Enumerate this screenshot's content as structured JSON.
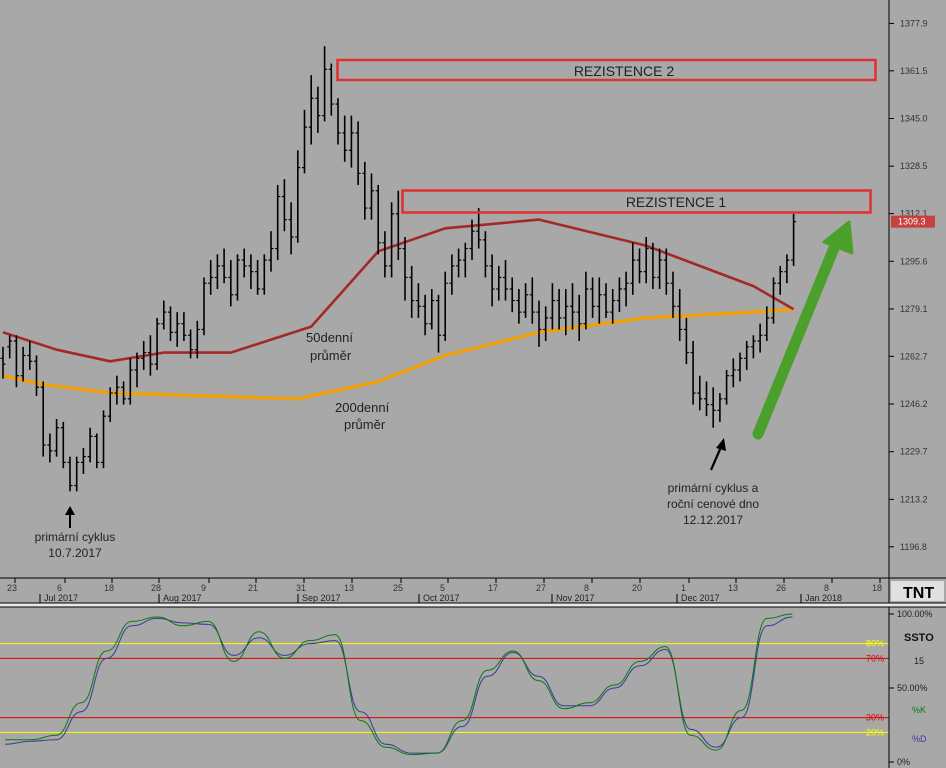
{
  "chart_data": {
    "type": "bar",
    "price_axis": {
      "ticks": [
        "1377.9",
        "1361.5",
        "1345.0",
        "1328.5",
        "1312.1",
        "1295.6",
        "1279.1",
        "1262.7",
        "1246.2",
        "1229.7",
        "1213.2",
        "1196.8"
      ],
      "last_price": "1309.3",
      "ylim": [
        1186,
        1386
      ]
    },
    "date_axis": {
      "day_ticks": [
        "23",
        "6",
        "18",
        "28",
        "9",
        "21",
        "31",
        "13",
        "25",
        "5",
        "17",
        "27",
        "8",
        "20",
        "1",
        "13",
        "26",
        "8",
        "18"
      ],
      "month_ticks": [
        "Jul 2017",
        "Aug 2017",
        "Sep 2017",
        "Oct 2017",
        "Nov 2017",
        "Dec 2017",
        "Jan 2018"
      ]
    },
    "ohlc": [
      [
        1262,
        1266,
        1255,
        1260
      ],
      [
        1266,
        1270,
        1262,
        1268
      ],
      [
        1268,
        1270,
        1252,
        1256
      ],
      [
        1256,
        1266,
        1254,
        1263
      ],
      [
        1263,
        1268,
        1258,
        1261
      ],
      [
        1261,
        1263,
        1249,
        1252
      ],
      [
        1252,
        1254,
        1228,
        1232
      ],
      [
        1232,
        1236,
        1226,
        1230
      ],
      [
        1230,
        1241,
        1228,
        1238
      ],
      [
        1238,
        1240,
        1224,
        1226
      ],
      [
        1226,
        1228,
        1216,
        1218
      ],
      [
        1218,
        1228,
        1216,
        1226
      ],
      [
        1226,
        1231,
        1222,
        1228
      ],
      [
        1228,
        1238,
        1226,
        1235
      ],
      [
        1235,
        1236,
        1224,
        1226
      ],
      [
        1226,
        1244,
        1224,
        1242
      ],
      [
        1242,
        1252,
        1240,
        1250
      ],
      [
        1250,
        1256,
        1246,
        1252
      ],
      [
        1252,
        1254,
        1246,
        1248
      ],
      [
        1248,
        1262,
        1246,
        1258
      ],
      [
        1258,
        1264,
        1252,
        1262
      ],
      [
        1262,
        1268,
        1258,
        1264
      ],
      [
        1264,
        1270,
        1256,
        1260
      ],
      [
        1260,
        1276,
        1258,
        1274
      ],
      [
        1274,
        1282,
        1272,
        1278
      ],
      [
        1278,
        1280,
        1268,
        1271
      ],
      [
        1271,
        1278,
        1266,
        1274
      ],
      [
        1274,
        1278,
        1268,
        1270
      ],
      [
        1270,
        1272,
        1262,
        1265
      ],
      [
        1265,
        1275,
        1262,
        1272
      ],
      [
        1272,
        1290,
        1270,
        1288
      ],
      [
        1288,
        1296,
        1284,
        1290
      ],
      [
        1290,
        1298,
        1286,
        1294
      ],
      [
        1294,
        1300,
        1288,
        1290
      ],
      [
        1290,
        1296,
        1280,
        1284
      ],
      [
        1284,
        1298,
        1282,
        1296
      ],
      [
        1296,
        1300,
        1290,
        1294
      ],
      [
        1294,
        1298,
        1286,
        1292
      ],
      [
        1292,
        1296,
        1284,
        1286
      ],
      [
        1286,
        1298,
        1284,
        1296
      ],
      [
        1296,
        1306,
        1292,
        1300
      ],
      [
        1300,
        1322,
        1296,
        1318
      ],
      [
        1318,
        1324,
        1306,
        1310
      ],
      [
        1310,
        1316,
        1298,
        1304
      ],
      [
        1304,
        1334,
        1302,
        1328
      ],
      [
        1328,
        1348,
        1326,
        1342
      ],
      [
        1342,
        1360,
        1336,
        1352
      ],
      [
        1352,
        1356,
        1340,
        1346
      ],
      [
        1346,
        1370,
        1344,
        1362
      ],
      [
        1362,
        1364,
        1346,
        1350
      ],
      [
        1350,
        1352,
        1336,
        1340
      ],
      [
        1340,
        1346,
        1330,
        1334
      ],
      [
        1334,
        1346,
        1328,
        1340
      ],
      [
        1340,
        1344,
        1322,
        1326
      ],
      [
        1326,
        1330,
        1310,
        1314
      ],
      [
        1314,
        1326,
        1310,
        1320
      ],
      [
        1320,
        1322,
        1298,
        1302
      ],
      [
        1302,
        1306,
        1290,
        1294
      ],
      [
        1294,
        1316,
        1290,
        1312
      ],
      [
        1312,
        1320,
        1296,
        1300
      ],
      [
        1300,
        1304,
        1282,
        1290
      ],
      [
        1290,
        1294,
        1276,
        1282
      ],
      [
        1282,
        1288,
        1276,
        1280
      ],
      [
        1280,
        1284,
        1270,
        1274
      ],
      [
        1274,
        1286,
        1272,
        1282
      ],
      [
        1282,
        1284,
        1264,
        1270
      ],
      [
        1270,
        1292,
        1268,
        1288
      ],
      [
        1288,
        1298,
        1284,
        1294
      ],
      [
        1294,
        1300,
        1290,
        1296
      ],
      [
        1296,
        1302,
        1290,
        1300
      ],
      [
        1300,
        1310,
        1296,
        1306
      ],
      [
        1306,
        1314,
        1300,
        1303
      ],
      [
        1303,
        1306,
        1290,
        1294
      ],
      [
        1294,
        1298,
        1280,
        1286
      ],
      [
        1286,
        1294,
        1282,
        1290
      ],
      [
        1290,
        1296,
        1282,
        1286
      ],
      [
        1286,
        1290,
        1278,
        1282
      ],
      [
        1282,
        1286,
        1274,
        1278
      ],
      [
        1278,
        1288,
        1276,
        1284
      ],
      [
        1284,
        1290,
        1274,
        1278
      ],
      [
        1278,
        1282,
        1266,
        1272
      ],
      [
        1272,
        1280,
        1268,
        1276
      ],
      [
        1276,
        1288,
        1272,
        1282
      ],
      [
        1282,
        1286,
        1272,
        1276
      ],
      [
        1276,
        1286,
        1270,
        1280
      ],
      [
        1280,
        1288,
        1272,
        1278
      ],
      [
        1278,
        1284,
        1268,
        1274
      ],
      [
        1274,
        1292,
        1272,
        1286
      ],
      [
        1286,
        1290,
        1276,
        1280
      ],
      [
        1280,
        1290,
        1274,
        1284
      ],
      [
        1284,
        1288,
        1276,
        1278
      ],
      [
        1278,
        1286,
        1274,
        1282
      ],
      [
        1282,
        1290,
        1278,
        1286
      ],
      [
        1286,
        1292,
        1280,
        1288
      ],
      [
        1288,
        1302,
        1284,
        1296
      ],
      [
        1296,
        1300,
        1288,
        1292
      ],
      [
        1292,
        1304,
        1288,
        1300
      ],
      [
        1300,
        1302,
        1286,
        1290
      ],
      [
        1290,
        1300,
        1286,
        1296
      ],
      [
        1296,
        1300,
        1284,
        1288
      ],
      [
        1288,
        1292,
        1276,
        1280
      ],
      [
        1280,
        1286,
        1268,
        1272
      ],
      [
        1272,
        1276,
        1260,
        1264
      ],
      [
        1264,
        1268,
        1246,
        1250
      ],
      [
        1250,
        1256,
        1244,
        1248
      ],
      [
        1248,
        1254,
        1242,
        1246
      ],
      [
        1246,
        1252,
        1238,
        1244
      ],
      [
        1244,
        1250,
        1240,
        1248
      ],
      [
        1248,
        1258,
        1246,
        1256
      ],
      [
        1256,
        1262,
        1252,
        1258
      ],
      [
        1258,
        1264,
        1254,
        1262
      ],
      [
        1262,
        1268,
        1258,
        1266
      ],
      [
        1266,
        1270,
        1262,
        1268
      ],
      [
        1268,
        1274,
        1264,
        1270
      ],
      [
        1270,
        1280,
        1268,
        1276
      ],
      [
        1276,
        1290,
        1274,
        1288
      ],
      [
        1288,
        1294,
        1284,
        1292
      ],
      [
        1292,
        1298,
        1288,
        1296
      ],
      [
        1296,
        1312,
        1294,
        1309.3
      ]
    ],
    "series": [
      {
        "name": "50denní průměr",
        "color": "#a52828",
        "x": [
          0,
          8,
          16,
          24,
          34,
          46,
          56,
          66,
          80,
          96,
          112,
          118
        ],
        "values": [
          1271,
          1265,
          1261,
          1264,
          1264,
          1273,
          1299,
          1307,
          1310,
          1301,
          1287,
          1279
        ]
      },
      {
        "name": "200denní průměr",
        "color": "#f5a000",
        "x": [
          0,
          6,
          16,
          30,
          44,
          56,
          66,
          80,
          96,
          112,
          118
        ],
        "values": [
          1256,
          1253,
          1250,
          1249,
          1248,
          1254,
          1263,
          1271,
          1276,
          1278,
          1279
        ]
      }
    ],
    "annotations": {
      "resistance_1": {
        "label": "REZISTENCE 1",
        "y": 1314
      },
      "resistance_2": {
        "label": "REZISTENCE 2",
        "y": 1362
      },
      "ma50_label": [
        "50denní",
        "průměr"
      ],
      "ma200_label": [
        "200denní",
        "průměr"
      ],
      "low_jul": [
        "primární cyklus",
        "10.7.2017"
      ],
      "low_dec": [
        "primární cyklus a",
        "roční cenové dno",
        "12.12.2017"
      ]
    },
    "oscillator": {
      "name": "SSTO",
      "period": "15",
      "k_label": "%K",
      "d_label": "%D",
      "axis_labels": [
        "100.00%",
        "50.00%",
        "0%"
      ],
      "levels": [
        {
          "label": "80%",
          "value": 80,
          "color": "#ffff00"
        },
        {
          "label": "70%",
          "value": 70,
          "color": "#e00000"
        },
        {
          "label": "30%",
          "value": 30,
          "color": "#e00000"
        },
        {
          "label": "20%",
          "value": 20,
          "color": "#ffff00"
        }
      ],
      "k_points": [
        [
          0,
          15
        ],
        [
          4,
          15
        ],
        [
          8,
          18
        ],
        [
          12,
          40
        ],
        [
          16,
          75
        ],
        [
          20,
          95
        ],
        [
          24,
          98
        ],
        [
          28,
          92
        ],
        [
          32,
          95
        ],
        [
          36,
          68
        ],
        [
          40,
          88
        ],
        [
          44,
          70
        ],
        [
          48,
          82
        ],
        [
          52,
          86
        ],
        [
          56,
          28
        ],
        [
          60,
          10
        ],
        [
          64,
          5
        ],
        [
          68,
          6
        ],
        [
          72,
          28
        ],
        [
          76,
          62
        ],
        [
          80,
          75
        ],
        [
          84,
          55
        ],
        [
          88,
          36
        ],
        [
          92,
          40
        ],
        [
          96,
          52
        ],
        [
          100,
          68
        ],
        [
          104,
          78
        ],
        [
          108,
          18
        ],
        [
          112,
          8
        ],
        [
          116,
          35
        ],
        [
          120,
          97
        ],
        [
          124,
          100
        ]
      ],
      "d_points": [
        [
          0,
          12
        ],
        [
          4,
          14
        ],
        [
          8,
          15
        ],
        [
          12,
          34
        ],
        [
          16,
          70
        ],
        [
          20,
          92
        ],
        [
          24,
          97
        ],
        [
          28,
          94
        ],
        [
          32,
          93
        ],
        [
          36,
          72
        ],
        [
          40,
          84
        ],
        [
          44,
          72
        ],
        [
          48,
          80
        ],
        [
          52,
          82
        ],
        [
          56,
          34
        ],
        [
          60,
          12
        ],
        [
          64,
          6
        ],
        [
          68,
          6
        ],
        [
          72,
          24
        ],
        [
          76,
          58
        ],
        [
          80,
          74
        ],
        [
          84,
          58
        ],
        [
          88,
          38
        ],
        [
          92,
          38
        ],
        [
          96,
          50
        ],
        [
          100,
          65
        ],
        [
          104,
          76
        ],
        [
          108,
          22
        ],
        [
          112,
          10
        ],
        [
          116,
          30
        ],
        [
          120,
          92
        ],
        [
          124,
          98
        ]
      ],
      "k_color": "#0c7a0c",
      "d_color": "#3a3a9a"
    }
  }
}
